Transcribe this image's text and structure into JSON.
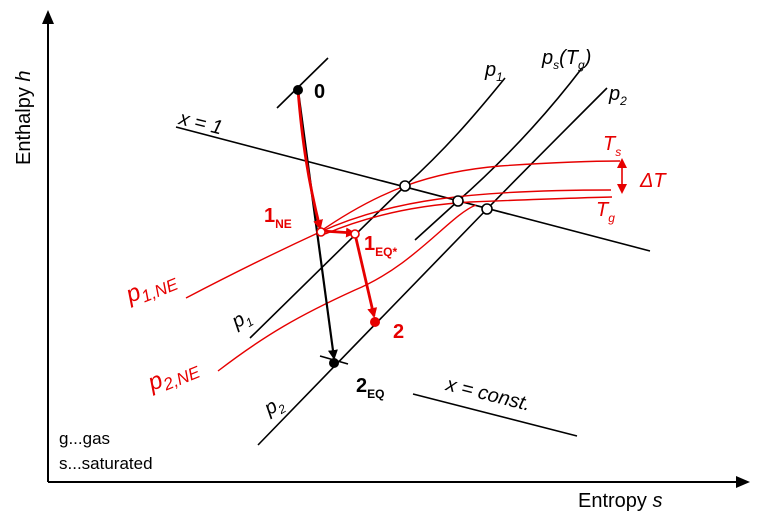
{
  "axes": {
    "y_label": "Enthalpy ",
    "y_symbol": "h",
    "x_label": "Entropy ",
    "x_symbol": "s"
  },
  "isobars": {
    "p1": {
      "main": "p",
      "sub": "1"
    },
    "p2": {
      "main": "p",
      "sub": "2"
    },
    "ps": {
      "main": "p",
      "sub": "s",
      "arg_open": "(T",
      "arg_sub": "g",
      "arg_close": ")"
    }
  },
  "nonequilibrium_isobars": {
    "p1_ne": {
      "main": "p",
      "sub": "1,NE"
    },
    "p2_ne": {
      "main": "p",
      "sub": "2,NE"
    }
  },
  "quality_lines": {
    "saturated": "x = 1",
    "constant": "x = const."
  },
  "temperatures": {
    "ts": {
      "main": "T",
      "sub": "s"
    },
    "tg": {
      "main": "T",
      "sub": "g"
    },
    "delta": "ΔT"
  },
  "states": {
    "s0": {
      "main": "0"
    },
    "s1_ne": {
      "main": "1",
      "sub": "NE"
    },
    "s1_eq": {
      "main": "1",
      "sub": "EQ*"
    },
    "s2": {
      "main": "2"
    },
    "s2_eq": {
      "main": "2",
      "sub": "EQ"
    }
  },
  "legend": {
    "line1": "g...gas",
    "line2": "s...saturated"
  },
  "colors": {
    "black": "#000000",
    "red": "#e60000"
  }
}
